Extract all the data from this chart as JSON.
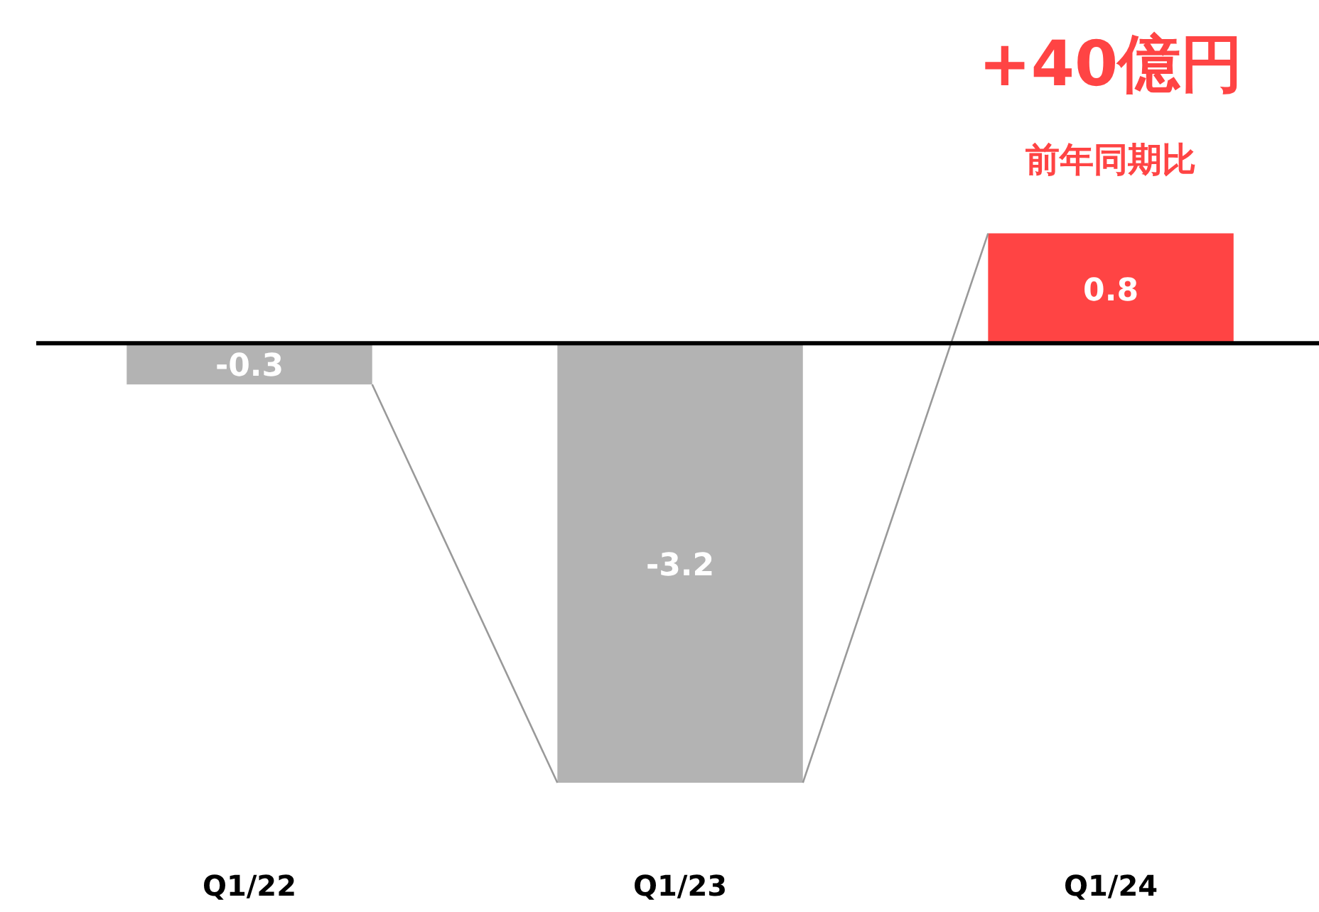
{
  "chart_data": {
    "type": "bar",
    "categories": [
      "Q1/22",
      "Q1/23",
      "Q1/24"
    ],
    "values": [
      -0.3,
      -3.2,
      0.8
    ],
    "colors": [
      "#b3b3b3",
      "#b3b3b3",
      "#ff4444"
    ],
    "data_labels": true,
    "tick_labels": "x",
    "grid": false,
    "annotations": [
      "+40億円",
      "前年同期比"
    ]
  }
}
